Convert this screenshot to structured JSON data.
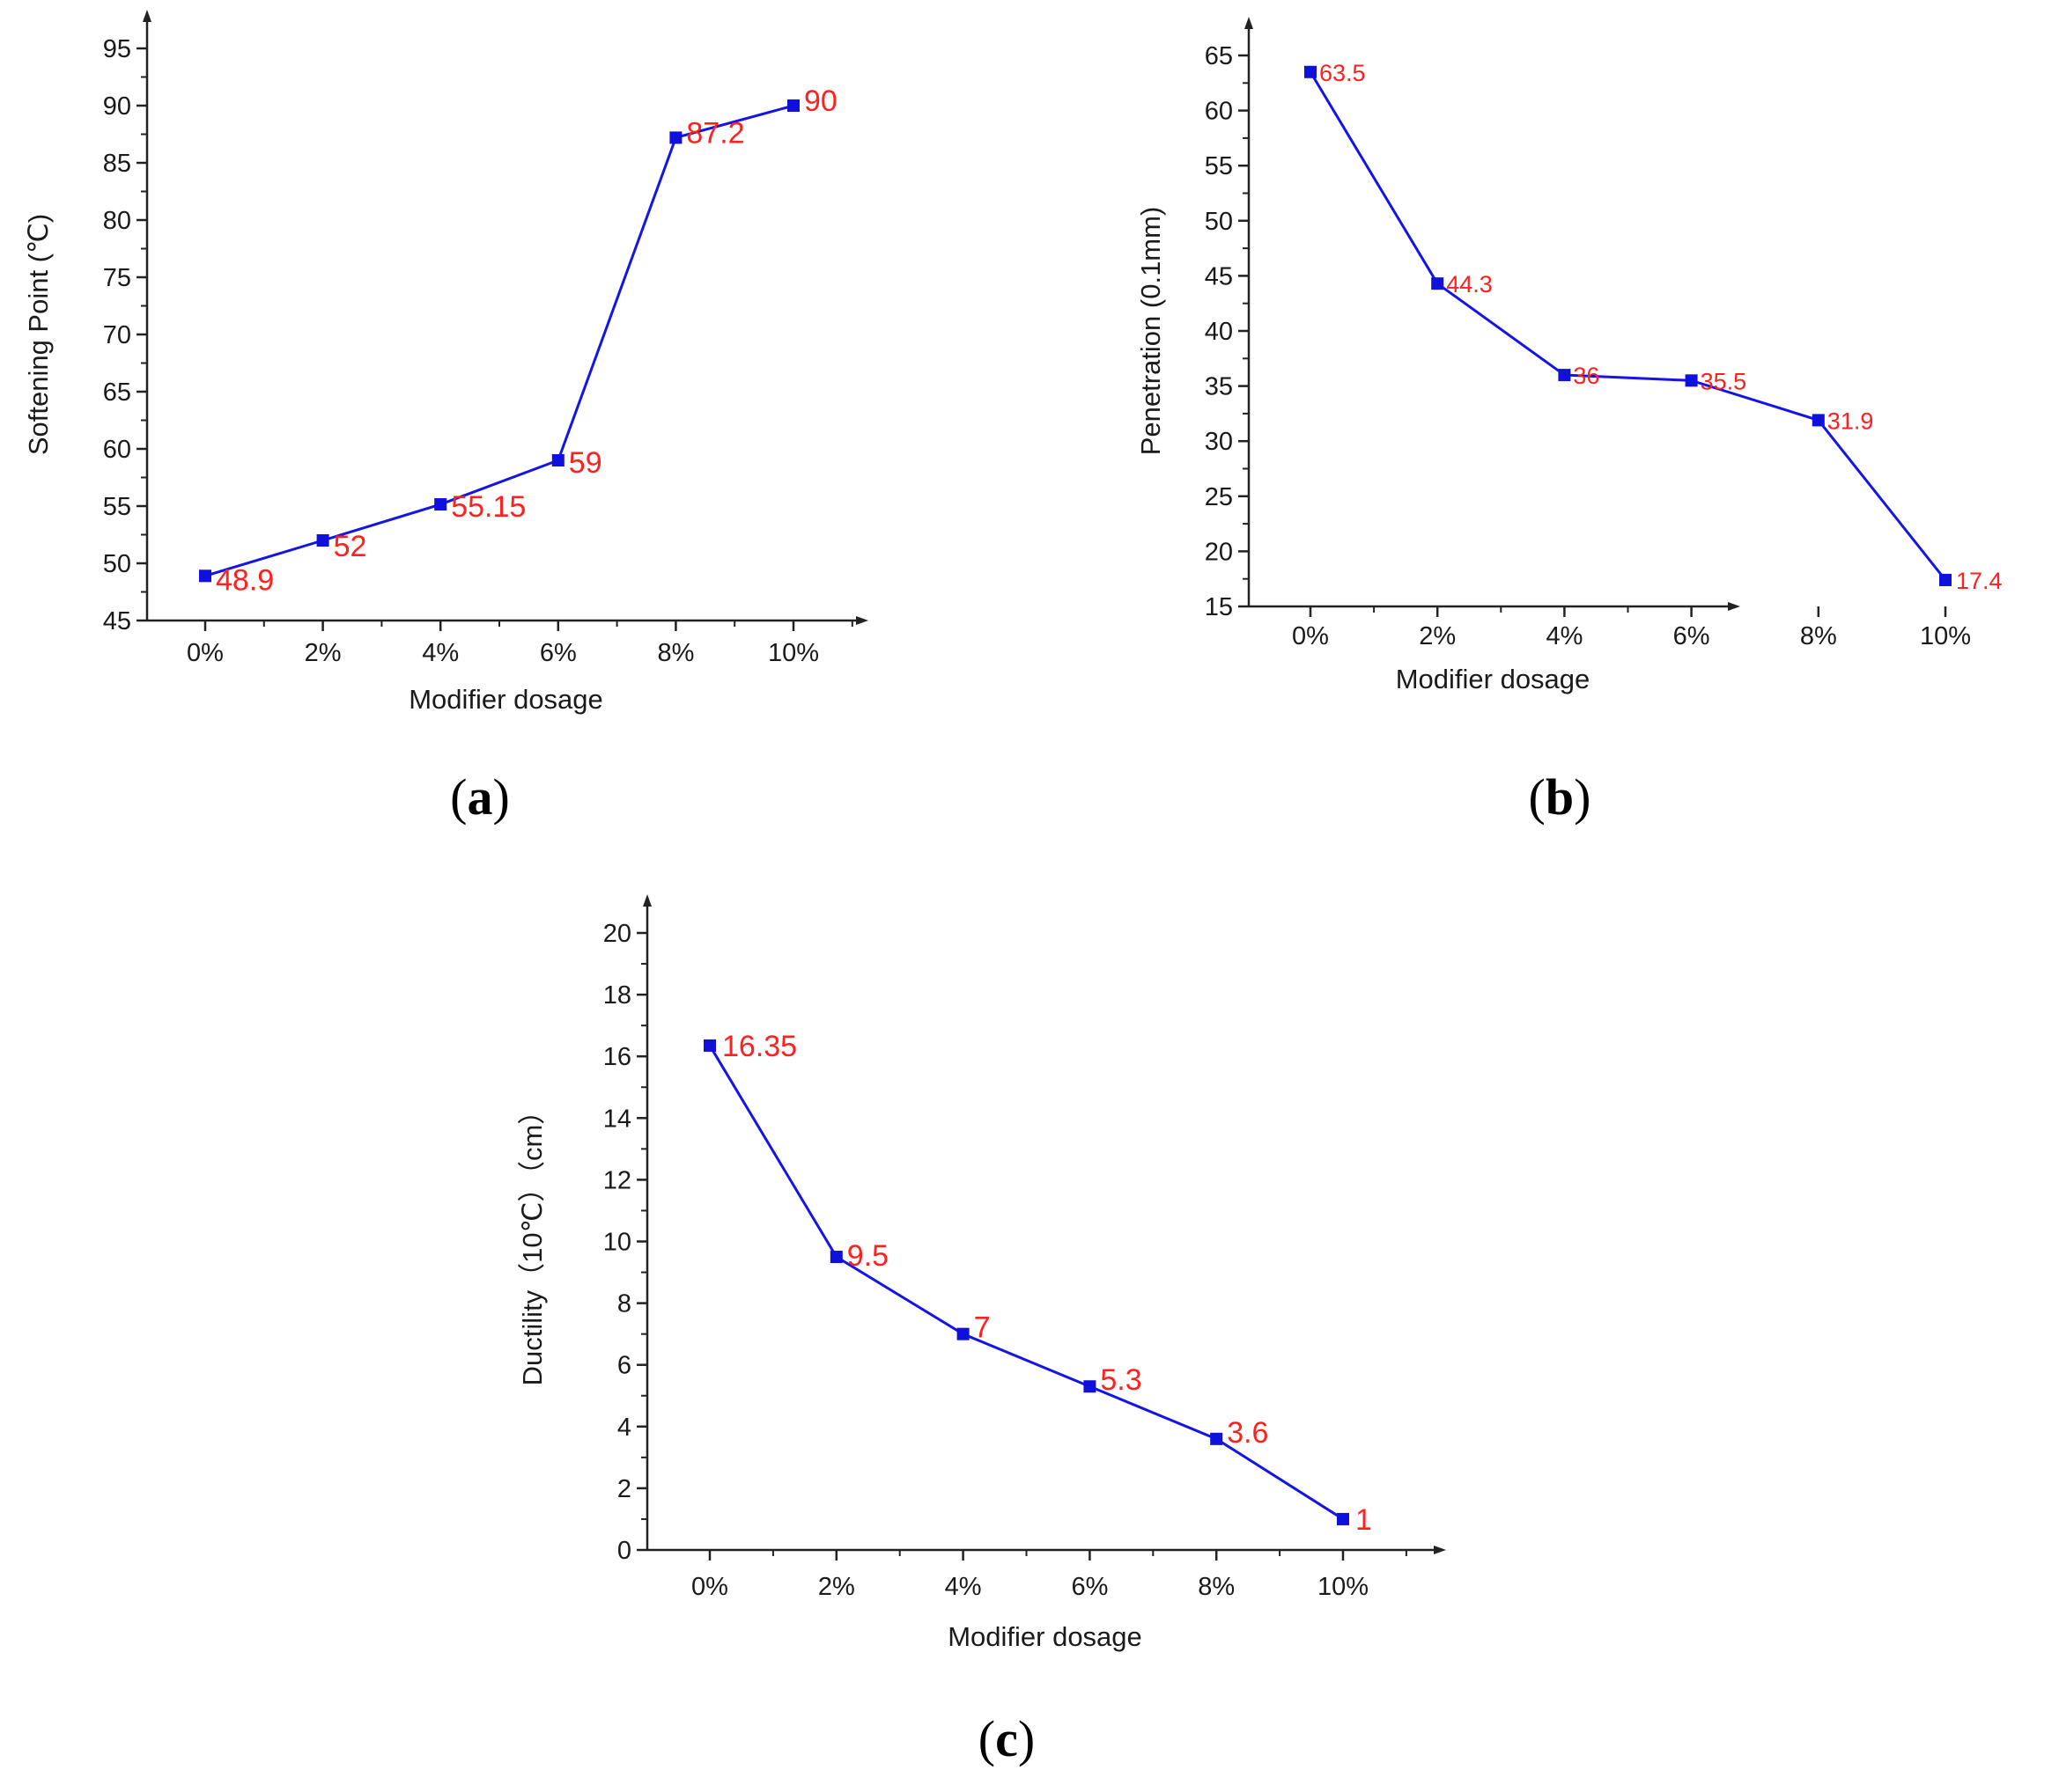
{
  "colors": {
    "line": "#1414e6",
    "marker": "#1010dd",
    "label": "#ff2020",
    "axis": "#222222"
  },
  "chart_data": [
    {
      "id": "a",
      "panel_label": "a",
      "type": "line",
      "title": "",
      "xlabel": "Modifier dosage",
      "ylabel": "Softening Point (℃)",
      "categories": [
        "0%",
        "2%",
        "4%",
        "6%",
        "8%",
        "10%"
      ],
      "values": [
        48.9,
        52,
        55.15,
        59,
        87.2,
        90
      ],
      "data_labels": [
        "48.9",
        "52",
        "55.15",
        "59",
        "87.2",
        "90"
      ],
      "ylim": [
        45,
        95
      ],
      "yticks": [
        45,
        50,
        55,
        60,
        65,
        70,
        75,
        80,
        85,
        90,
        95
      ],
      "ytick_labels": [
        "45",
        "50",
        "55",
        "60",
        "65",
        "70",
        "75",
        "80",
        "85",
        "90",
        "95"
      ],
      "grid": false,
      "legend": "none"
    },
    {
      "id": "b",
      "panel_label": "b",
      "type": "line",
      "title": "",
      "xlabel": "Modifier dosage",
      "ylabel": "Penetration (0.1mm)",
      "categories": [
        "0%",
        "2%",
        "4%",
        "6%",
        "8%",
        "10%"
      ],
      "values": [
        63.5,
        44.3,
        36,
        35.5,
        31.9,
        17.4
      ],
      "data_labels": [
        "63.5",
        "44.3",
        "36",
        "35.5",
        "31.9",
        "17.4"
      ],
      "ylim": [
        15,
        65
      ],
      "yticks": [
        15,
        20,
        25,
        30,
        35,
        40,
        45,
        50,
        55,
        60,
        65
      ],
      "ytick_labels": [
        "15",
        "20",
        "25",
        "30",
        "35",
        "40",
        "45",
        "50",
        "55",
        "60",
        "65"
      ],
      "grid": false,
      "legend": "none"
    },
    {
      "id": "c",
      "panel_label": "c",
      "type": "line",
      "title": "",
      "xlabel": "Modifier dosage",
      "ylabel": "Ductility（10℃）（cm）",
      "categories": [
        "0%",
        "2%",
        "4%",
        "6%",
        "8%",
        "10%"
      ],
      "values": [
        16.35,
        9.5,
        7,
        5.3,
        3.6,
        1
      ],
      "data_labels": [
        "16.35",
        "9.5",
        "7",
        "5.3",
        "3.6",
        "1"
      ],
      "ylim": [
        0,
        20
      ],
      "yticks": [
        0,
        2,
        4,
        6,
        8,
        10,
        12,
        14,
        16,
        18,
        20
      ],
      "ytick_labels": [
        "0",
        "2",
        "4",
        "6",
        "8",
        "10",
        "12",
        "14",
        "16",
        "18",
        "20"
      ],
      "grid": false,
      "legend": "none"
    }
  ]
}
